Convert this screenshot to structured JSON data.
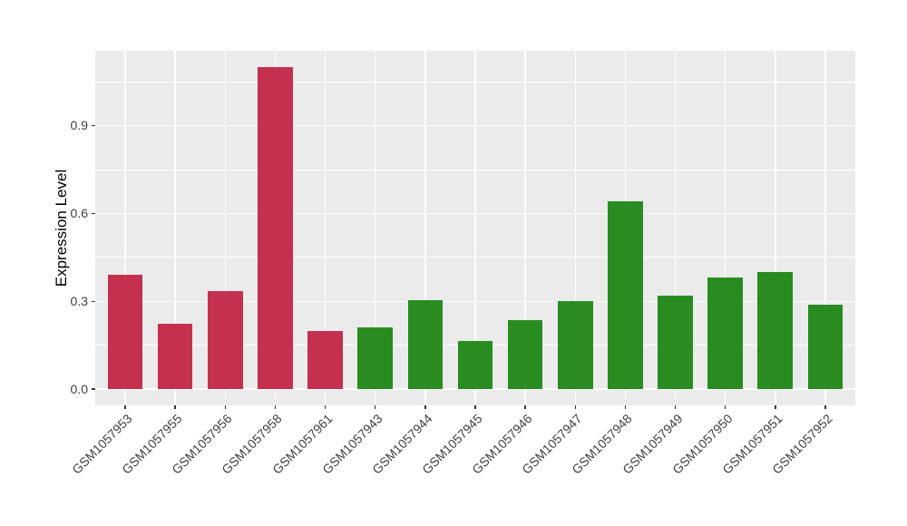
{
  "figure": {
    "bg_color": "#FFFFFF"
  },
  "chart_data": {
    "type": "bar",
    "title": "",
    "xlabel": "",
    "ylabel": "Expression Level",
    "categories": [
      "GSM1057953",
      "GSM1057955",
      "GSM1057956",
      "GSM1057958",
      "GSM1057961",
      "GSM1057943",
      "GSM1057944",
      "GSM1057945",
      "GSM1057946",
      "GSM1057947",
      "GSM1057948",
      "GSM1057949",
      "GSM1057950",
      "GSM1057951",
      "GSM1057952"
    ],
    "values": [
      0.39,
      0.225,
      0.335,
      1.1,
      0.2,
      0.21,
      0.305,
      0.165,
      0.235,
      0.3,
      0.64,
      0.32,
      0.38,
      0.4,
      0.29
    ],
    "bar_colors": [
      "#C4304D",
      "#C4304D",
      "#C4304D",
      "#C4304D",
      "#C4304D",
      "#288C21",
      "#288C21",
      "#288C21",
      "#288C21",
      "#288C21",
      "#288C21",
      "#288C21",
      "#288C21",
      "#288C21",
      "#288C21"
    ],
    "group_colors": {
      "red": "#C4304D",
      "green": "#288C21"
    },
    "ylim": [
      -0.055,
      1.155
    ],
    "yticks": [
      0.0,
      0.3,
      0.6,
      0.9
    ],
    "ytick_labels": [
      "0.0",
      "0.3",
      "0.6",
      "0.9"
    ],
    "yminor_ticks": [
      0.15,
      0.45,
      0.75,
      1.05
    ],
    "x_label_angle": 45,
    "legend_position": "none",
    "grid": true,
    "panel_bg": "#EBEBEB",
    "grid_color": "#FFFFFF",
    "tick_color": "#333333",
    "axis_text_color": "#404040",
    "axis_title_color": "#000000"
  }
}
